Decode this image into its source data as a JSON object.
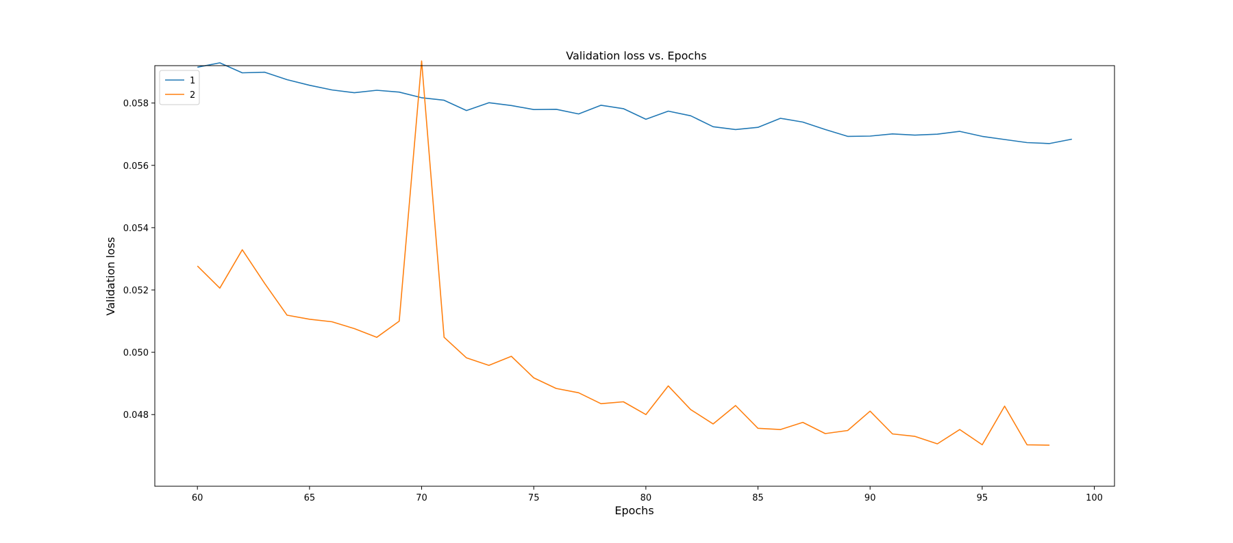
{
  "chart_data": {
    "type": "line",
    "title": "Validation loss vs. Epochs",
    "xlabel": "Epochs",
    "ylabel": "Validation loss",
    "xlim": [
      58.1,
      100.9
    ],
    "ylim": [
      0.0457,
      0.0592
    ],
    "xticks": [
      60,
      65,
      70,
      75,
      80,
      85,
      90,
      95,
      100
    ],
    "yticks": [
      0.048,
      0.05,
      0.052,
      0.054,
      0.056,
      0.058
    ],
    "ytick_labels": [
      "0.048",
      "0.050",
      "0.052",
      "0.054",
      "0.056",
      "0.058"
    ],
    "grid": false,
    "legend_position": "top-left",
    "series": [
      {
        "name": "1",
        "color": "#1f77b4",
        "x": [
          60,
          61,
          62,
          63,
          64,
          65,
          66,
          67,
          68,
          69,
          70,
          71,
          72,
          73,
          74,
          75,
          76,
          77,
          78,
          79,
          80,
          81,
          82,
          83,
          84,
          85,
          86,
          87,
          88,
          89,
          90,
          91,
          92,
          93,
          94,
          95,
          96,
          97,
          98,
          99
        ],
        "y": [
          0.05915,
          0.05929,
          0.05897,
          0.05899,
          0.05875,
          0.05857,
          0.05842,
          0.05833,
          0.05841,
          0.05835,
          0.05817,
          0.05809,
          0.05776,
          0.05801,
          0.05792,
          0.05779,
          0.0578,
          0.05765,
          0.05793,
          0.05782,
          0.05748,
          0.05774,
          0.05759,
          0.05724,
          0.05715,
          0.05722,
          0.05751,
          0.05739,
          0.05715,
          0.05693,
          0.05694,
          0.05701,
          0.05697,
          0.057,
          0.05709,
          0.05693,
          0.05683,
          0.05673,
          0.0567,
          0.05684
        ]
      },
      {
        "name": "2",
        "color": "#ff7f0e",
        "x": [
          60,
          61,
          62,
          63,
          64,
          65,
          66,
          67,
          68,
          69,
          70,
          71,
          72,
          73,
          74,
          75,
          76,
          77,
          78,
          79,
          80,
          81,
          82,
          83,
          84,
          85,
          86,
          87,
          88,
          89,
          90,
          91,
          92,
          93,
          94,
          95,
          96,
          97,
          98
        ],
        "y": [
          0.05277,
          0.05206,
          0.05329,
          0.05221,
          0.05119,
          0.05106,
          0.05098,
          0.05076,
          0.05048,
          0.051,
          0.05935,
          0.05048,
          0.04982,
          0.04958,
          0.04987,
          0.04918,
          0.04884,
          0.0487,
          0.04835,
          0.04841,
          0.048,
          0.04892,
          0.04816,
          0.0477,
          0.04829,
          0.04756,
          0.04752,
          0.04775,
          0.04739,
          0.04749,
          0.04811,
          0.04738,
          0.0473,
          0.04706,
          0.04752,
          0.04703,
          0.04827,
          0.04703,
          0.04702
        ]
      }
    ]
  }
}
